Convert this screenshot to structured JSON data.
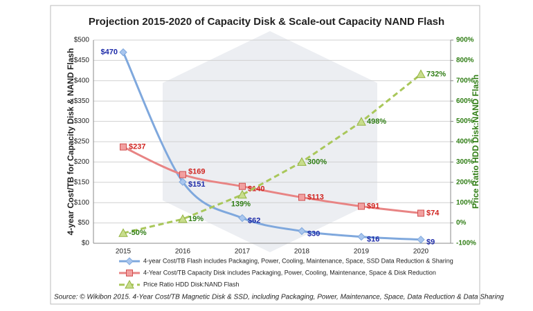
{
  "chart_data": {
    "type": "line",
    "title": "Projection 2015-2020 of Capacity Disk & Scale-out Capacity NAND Flash",
    "y_label": "4-year Cost/TB for Capacity Disk & NAND Flash",
    "y2_label": "Price Ratio HDD Disk:NAND Flash",
    "source": "Source: © Wikibon 2015. 4-Year Cost/TB Magnetic Disk & SSD, including Packaging, Power, Maintenance, Space, Data Reduction & Data Sharing",
    "categories": [
      "2015",
      "2016",
      "2017",
      "2018",
      "2019",
      "2020"
    ],
    "ylim": [
      0,
      500
    ],
    "yticks": [
      {
        "value": 0,
        "label": "$0"
      },
      {
        "value": 50,
        "label": "$50"
      },
      {
        "value": 100,
        "label": "$100"
      },
      {
        "value": 150,
        "label": "$150"
      },
      {
        "value": 200,
        "label": "$200"
      },
      {
        "value": 250,
        "label": "$250"
      },
      {
        "value": 300,
        "label": "$300"
      },
      {
        "value": 350,
        "label": "$350"
      },
      {
        "value": 400,
        "label": "$400"
      },
      {
        "value": 450,
        "label": "$450"
      },
      {
        "value": 500,
        "label": "$500"
      }
    ],
    "y2lim": [
      -100,
      900
    ],
    "y2ticks": [
      {
        "value": -100,
        "label": "-100%"
      },
      {
        "value": 0,
        "label": "0%"
      },
      {
        "value": 100,
        "label": "100%"
      },
      {
        "value": 200,
        "label": "200%"
      },
      {
        "value": 300,
        "label": "300%"
      },
      {
        "value": 400,
        "label": "400%"
      },
      {
        "value": 500,
        "label": "500%"
      },
      {
        "value": 600,
        "label": "600%"
      },
      {
        "value": 700,
        "label": "700%"
      },
      {
        "value": 800,
        "label": "800%"
      },
      {
        "value": 900,
        "label": "900%"
      }
    ],
    "grid": true,
    "series": [
      {
        "name": "4-year Cost/TB Flash includes Packaging, Power, Cooling, Maintenance, Space, SSD Data Reduction & Sharing",
        "color": "#7fa8dd",
        "marker": "diamond",
        "label_color": "#1c2aa8",
        "values": [
          470,
          151,
          62,
          30,
          16,
          9
        ],
        "value_labels": [
          "$470",
          "$151",
          "$62",
          "$30",
          "$16",
          "$9"
        ]
      },
      {
        "name": "4-Year Cost/TB Capacity Disk includes Packaging, Power, Cooling, Maintenance, Space & Disk Reduction",
        "color": "#e88484",
        "marker": "square",
        "label_color": "#d0231f",
        "values": [
          237,
          169,
          140,
          113,
          91,
          74
        ],
        "value_labels": [
          "$237",
          "$169",
          "$140",
          "$113",
          "$91",
          "$74"
        ]
      },
      {
        "name": "Price Ratio HDD Disk:NAND Flash",
        "color": "#a9c75a",
        "marker": "triangle",
        "label_color": "#2f7d14",
        "axis": "y2",
        "dashed": true,
        "values": [
          -50,
          19,
          139,
          300,
          498,
          732
        ],
        "value_labels": [
          "-50%",
          "19%",
          "139%",
          "300%",
          "498%",
          "732%"
        ]
      }
    ]
  }
}
